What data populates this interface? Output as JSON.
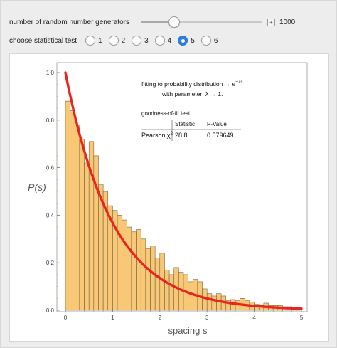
{
  "controls": {
    "generators_label": "number of random number generators",
    "generators_value": "1000",
    "generators_fraction": 0.27,
    "plus_glyph": "+",
    "test_label": "choose statistical test",
    "test_options": [
      "1",
      "2",
      "3",
      "4",
      "5",
      "6"
    ],
    "selected_test": "5"
  },
  "annotation": {
    "line1": "fitting to probability distribution → e",
    "line1_sup": "−λs",
    "line2": "with parameter: λ → 1.",
    "gof_title": "goodness-of-fit test",
    "col_statistic": "Statistic",
    "col_pvalue": "P-Value",
    "row_label": "Pearson χ",
    "row_label_sup": "2",
    "row_statistic": "28.8",
    "row_pvalue": "0.579649"
  },
  "chart_data": {
    "type": "bar",
    "ylabel": "P(s)",
    "xlabel": "spacing s",
    "xlim": [
      0,
      5
    ],
    "ylim": [
      0,
      1.0
    ],
    "x_ticks": [
      "0",
      "1",
      "2",
      "3",
      "4",
      "5"
    ],
    "y_ticks": [
      "0.0",
      "0.2",
      "0.4",
      "0.6",
      "0.8",
      "1.0"
    ],
    "bin_width": 0.1,
    "bar_color": "#f9c877",
    "curve_color": "#e8251f",
    "histogram": [
      0.88,
      0.84,
      0.78,
      0.72,
      0.62,
      0.71,
      0.65,
      0.53,
      0.5,
      0.44,
      0.42,
      0.4,
      0.38,
      0.35,
      0.33,
      0.34,
      0.3,
      0.26,
      0.27,
      0.22,
      0.24,
      0.17,
      0.15,
      0.18,
      0.16,
      0.15,
      0.12,
      0.13,
      0.12,
      0.09,
      0.07,
      0.06,
      0.07,
      0.06,
      0.04,
      0.045,
      0.04,
      0.05,
      0.04,
      0.035,
      0.025,
      0.02,
      0.03,
      0.02,
      0.02,
      0.02,
      0.015,
      0.015,
      0.01,
      0.01
    ],
    "curve": {
      "type": "line",
      "name": "e^(-λs)",
      "lambda": 1.0
    }
  }
}
